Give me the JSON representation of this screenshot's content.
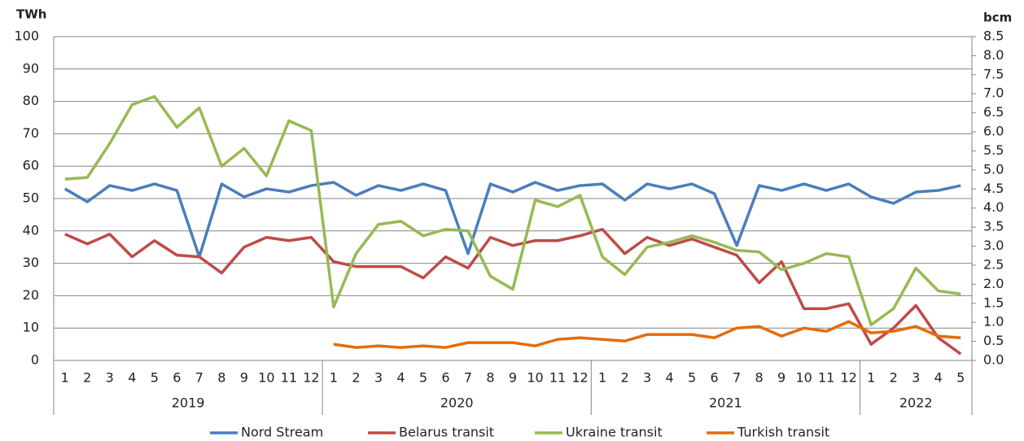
{
  "chart_data": {
    "type": "line",
    "y_label": "TWh",
    "y2_label": "bcm",
    "categories": [
      "1",
      "2",
      "3",
      "4",
      "5",
      "6",
      "7",
      "8",
      "9",
      "10",
      "11",
      "12",
      "1",
      "2",
      "3",
      "4",
      "5",
      "6",
      "7",
      "8",
      "9",
      "10",
      "11",
      "12",
      "1",
      "2",
      "3",
      "4",
      "5",
      "6",
      "7",
      "8",
      "9",
      "10",
      "11",
      "12",
      "1",
      "2",
      "3",
      "4",
      "5"
    ],
    "years": [
      "2019",
      "2020",
      "2021",
      "2022"
    ],
    "ylim": [
      0,
      100
    ],
    "yticks": [
      0,
      10,
      20,
      30,
      40,
      50,
      60,
      70,
      80,
      90,
      100
    ],
    "y2lim": [
      0,
      8.5
    ],
    "y2ticks": [
      {
        "value": 0,
        "label": "0.0"
      },
      0.5,
      {
        "value": 1,
        "label": "1.0"
      },
      1.5,
      {
        "value": 2,
        "label": "2.0"
      },
      2.5,
      {
        "value": 3,
        "label": "3.0"
      },
      3.5,
      {
        "value": 4,
        "label": "4.0"
      },
      4.5,
      {
        "value": 5,
        "label": "5.0"
      },
      5.5,
      {
        "value": 6,
        "label": "6.0"
      },
      6.5,
      {
        "value": 7,
        "label": "7.0"
      },
      7.5,
      {
        "value": 8,
        "label": "8.0"
      },
      8.5
    ],
    "grid": true,
    "legend": "bottom",
    "series": [
      {
        "name": "Nord Stream",
        "color": "#4a7ebb",
        "values": [
          53,
          49,
          54,
          52.5,
          54.5,
          52.5,
          32,
          54.5,
          50.5,
          53,
          52,
          54,
          55,
          51,
          54,
          52.5,
          54.5,
          52.5,
          33,
          54.5,
          52,
          55,
          52.5,
          54,
          54.5,
          49.5,
          54.5,
          53,
          54.5,
          51.5,
          35.5,
          54,
          52.5,
          54.5,
          52.5,
          54.5,
          50.5,
          48.5,
          52,
          52.5,
          54
        ]
      },
      {
        "name": "Belarus transit",
        "color": "#be4b48",
        "values": [
          39,
          36,
          39,
          32,
          37,
          32.5,
          32,
          27,
          35,
          38,
          37,
          38,
          30.5,
          29,
          29,
          29,
          25.5,
          32,
          28.5,
          38,
          35.5,
          37,
          37,
          38.5,
          40.5,
          33,
          38,
          35.5,
          37.5,
          35,
          32.5,
          24,
          30.5,
          16,
          16,
          17.5,
          5,
          10,
          17,
          7,
          2
        ]
      },
      {
        "name": "Ukraine transit",
        "color": "#98b954",
        "values": [
          56,
          56.5,
          67,
          79,
          81.5,
          72,
          78,
          60,
          65.5,
          57,
          74,
          71,
          16.5,
          33,
          42,
          43,
          38.5,
          40.5,
          40,
          26,
          22,
          49.5,
          47.5,
          51,
          32,
          26.5,
          35,
          36.5,
          38.5,
          36.5,
          34,
          33.5,
          28,
          30,
          33,
          32,
          11,
          16,
          28.5,
          21.5,
          20.5
        ]
      },
      {
        "name": "Turkish transit",
        "color": "#e46c0a",
        "values": [
          null,
          null,
          null,
          null,
          null,
          null,
          null,
          null,
          null,
          null,
          null,
          null,
          5,
          4,
          4.5,
          4,
          4.5,
          4,
          5.5,
          5.5,
          5.5,
          4.5,
          6.5,
          7,
          6.5,
          6,
          8,
          8,
          8,
          7,
          10,
          10.5,
          7.5,
          10,
          9,
          12,
          8.5,
          9,
          10.5,
          7.5,
          7
        ]
      }
    ]
  }
}
